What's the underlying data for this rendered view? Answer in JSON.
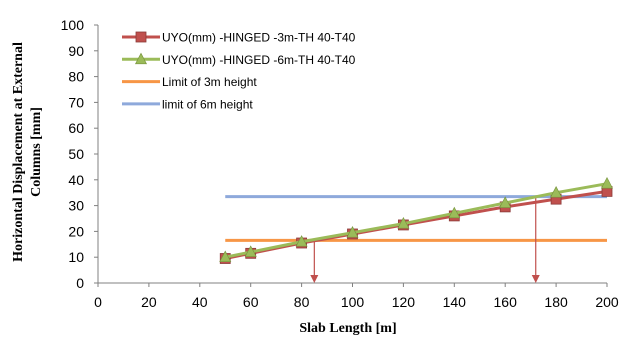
{
  "chart_data": {
    "type": "line",
    "title": "",
    "xlabel": "Slab Length [m]",
    "ylabel_lines": [
      "Horizontal Displacement at External",
      "Columns [mm]"
    ],
    "xlim": [
      0,
      200
    ],
    "ylim": [
      0,
      100
    ],
    "xticks": [
      0,
      20,
      40,
      60,
      80,
      100,
      120,
      140,
      160,
      180,
      200
    ],
    "yticks": [
      0,
      10,
      20,
      30,
      40,
      50,
      60,
      70,
      80,
      90,
      100
    ],
    "grid": false,
    "legend_position": "top-left",
    "series": [
      {
        "name": "UYO(mm) -HINGED -3m-TH 40-T40",
        "color": "#C0504D",
        "marker": "square",
        "x": [
          50,
          60,
          80,
          100,
          120,
          140,
          160,
          180,
          200
        ],
        "y": [
          9.5,
          11.5,
          15.5,
          19,
          22.5,
          26,
          29.5,
          32.5,
          35.5
        ]
      },
      {
        "name": "UYO(mm) -HINGED -6m-TH 40-T40",
        "color": "#9BBB59",
        "marker": "triangle",
        "x": [
          50,
          60,
          80,
          100,
          120,
          140,
          160,
          180,
          200
        ],
        "y": [
          10,
          12,
          16,
          19.5,
          23,
          27,
          31,
          35,
          38.5
        ]
      },
      {
        "name": "Limit of 3m height",
        "color": "#F79646",
        "marker": "none",
        "x": [
          50,
          200
        ],
        "y": [
          16.5,
          16.5
        ]
      },
      {
        "name": "limit of 6m height",
        "color": "#8EA9DB",
        "marker": "none",
        "x": [
          50,
          200
        ],
        "y": [
          33.5,
          33.5
        ]
      }
    ],
    "annotations": [
      {
        "type": "arrow-down",
        "color": "#C0504D",
        "x": 85,
        "y_from": 16.5,
        "y_to": 0
      },
      {
        "type": "arrow-down",
        "color": "#C0504D",
        "x": 172,
        "y_from": 33.5,
        "y_to": 0
      }
    ]
  }
}
